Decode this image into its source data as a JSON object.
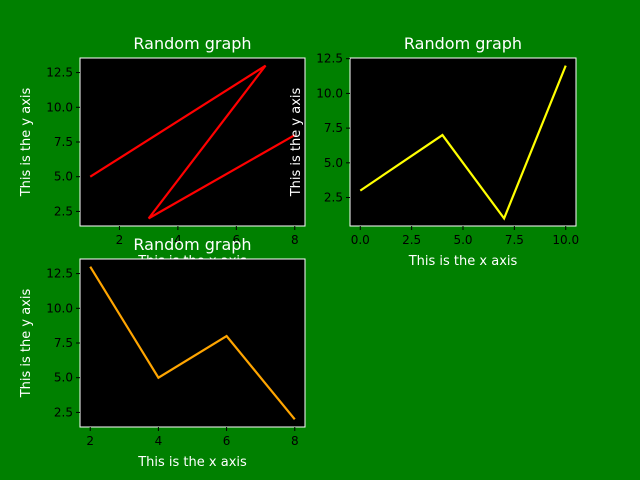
{
  "figure": {
    "background": "#008000",
    "axes_background": "#000000",
    "axes_edge": "#ffffff",
    "tick_color": "#000000",
    "label_color": "#ffffff"
  },
  "chart_data": [
    {
      "type": "line",
      "title": "Random graph",
      "xlabel": "This is the x axis",
      "ylabel": "This is the y axis",
      "color": "#ff0000",
      "x": [
        1,
        7,
        3,
        8
      ],
      "y": [
        5,
        13,
        2,
        8
      ],
      "xlim": [
        0.65,
        8.35
      ],
      "ylim": [
        1.45,
        13.55
      ],
      "xticks": [
        2,
        4,
        6,
        8
      ],
      "yticks": [
        2.5,
        5.0,
        7.5,
        10.0,
        12.5
      ]
    },
    {
      "type": "line",
      "title": "Random graph",
      "xlabel": "This is the x axis",
      "ylabel": "This is the y axis",
      "color": "#ffff00",
      "x": [
        0,
        4,
        7,
        10
      ],
      "y": [
        3,
        7,
        1,
        12
      ],
      "xlim": [
        -0.5,
        10.5
      ],
      "ylim": [
        0.45,
        12.55
      ],
      "xticks": [
        0.0,
        2.5,
        5.0,
        7.5,
        10.0
      ],
      "yticks": [
        2.5,
        5.0,
        7.5,
        10.0,
        12.5
      ]
    },
    {
      "type": "line",
      "title": "Random graph",
      "xlabel": "This is the x axis",
      "ylabel": "This is the y axis",
      "color": "#ffa500",
      "x": [
        2,
        4,
        6,
        8
      ],
      "y": [
        13,
        5,
        8,
        2
      ],
      "xlim": [
        1.7,
        8.3
      ],
      "ylim": [
        1.45,
        13.55
      ],
      "xticks": [
        2,
        4,
        6,
        8
      ],
      "yticks": [
        2.5,
        5.0,
        7.5,
        10.0,
        12.5
      ]
    }
  ]
}
